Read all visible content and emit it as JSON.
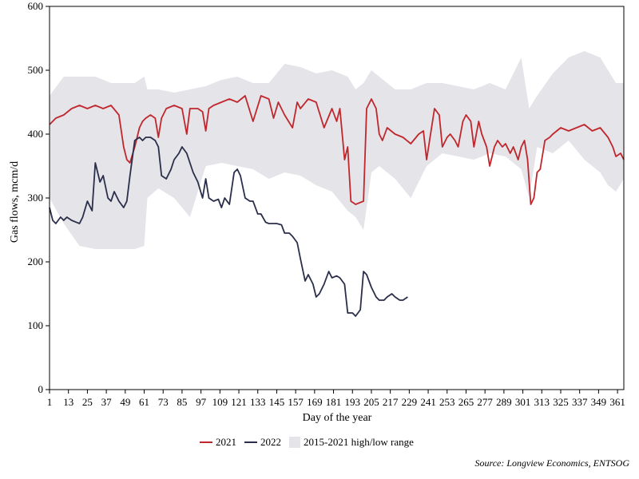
{
  "chart_data": {
    "type": "line",
    "title": "",
    "xlabel": "Day of the year",
    "ylabel": "Gas flows, mcm/d",
    "xlim": [
      1,
      365
    ],
    "ylim": [
      0,
      600
    ],
    "x_ticks": [
      1,
      13,
      25,
      37,
      49,
      61,
      73,
      85,
      97,
      109,
      121,
      133,
      145,
      157,
      169,
      181,
      193,
      205,
      217,
      229,
      241,
      253,
      265,
      277,
      289,
      301,
      313,
      325,
      337,
      349,
      361
    ],
    "y_ticks": [
      0,
      100,
      200,
      300,
      400,
      500,
      600
    ],
    "legend": {
      "placement": "bottom-center",
      "items": [
        "2021",
        "2022",
        "2015-2021 high/low range"
      ]
    },
    "colors": {
      "s2021": "#c0272d",
      "s2022": "#2b2e4a",
      "range": "#e4e4e9"
    },
    "range_band": {
      "name": "2015-2021 high/low range",
      "x": [
        1,
        10,
        20,
        30,
        40,
        55,
        61,
        63,
        70,
        80,
        90,
        100,
        110,
        120,
        130,
        140,
        150,
        160,
        170,
        180,
        190,
        195,
        200,
        205,
        210,
        220,
        230,
        240,
        250,
        260,
        270,
        280,
        290,
        300,
        305,
        310,
        320,
        330,
        340,
        350,
        355,
        360,
        365
      ],
      "high": [
        460,
        490,
        490,
        490,
        480,
        480,
        490,
        470,
        470,
        465,
        470,
        475,
        485,
        490,
        480,
        480,
        510,
        505,
        495,
        500,
        490,
        470,
        480,
        500,
        490,
        470,
        470,
        480,
        480,
        475,
        470,
        480,
        470,
        520,
        440,
        460,
        495,
        520,
        530,
        520,
        500,
        480,
        480
      ],
      "low": [
        300,
        260,
        225,
        220,
        220,
        220,
        225,
        300,
        315,
        300,
        270,
        350,
        355,
        350,
        345,
        330,
        340,
        335,
        320,
        310,
        280,
        270,
        250,
        340,
        350,
        330,
        300,
        350,
        370,
        365,
        360,
        370,
        365,
        345,
        300,
        380,
        370,
        390,
        360,
        340,
        320,
        310,
        330
      ]
    },
    "series": [
      {
        "name": "2021",
        "x": [
          1,
          5,
          10,
          15,
          20,
          25,
          30,
          35,
          40,
          45,
          48,
          50,
          52,
          55,
          58,
          60,
          62,
          65,
          68,
          70,
          72,
          75,
          80,
          85,
          88,
          90,
          95,
          98,
          100,
          102,
          105,
          110,
          115,
          120,
          125,
          130,
          135,
          140,
          143,
          146,
          150,
          155,
          158,
          160,
          165,
          170,
          175,
          180,
          183,
          185,
          188,
          190,
          192,
          195,
          200,
          202,
          205,
          208,
          210,
          212,
          215,
          220,
          225,
          230,
          235,
          238,
          240,
          245,
          248,
          250,
          253,
          255,
          258,
          260,
          263,
          265,
          268,
          270,
          273,
          275,
          278,
          280,
          283,
          285,
          288,
          290,
          293,
          295,
          298,
          300,
          302,
          304,
          306,
          308,
          310,
          312,
          315,
          318,
          320,
          325,
          330,
          335,
          340,
          345,
          350,
          355,
          358,
          360,
          363,
          365
        ],
        "values": [
          415,
          425,
          430,
          440,
          445,
          440,
          445,
          440,
          445,
          430,
          380,
          360,
          355,
          380,
          410,
          420,
          425,
          430,
          425,
          395,
          425,
          440,
          445,
          440,
          400,
          440,
          440,
          435,
          405,
          440,
          445,
          450,
          455,
          450,
          460,
          420,
          460,
          455,
          425,
          450,
          430,
          410,
          450,
          440,
          455,
          450,
          410,
          440,
          420,
          440,
          360,
          380,
          295,
          290,
          295,
          440,
          455,
          440,
          400,
          390,
          410,
          400,
          395,
          385,
          400,
          405,
          360,
          440,
          430,
          380,
          395,
          400,
          390,
          380,
          420,
          430,
          420,
          380,
          420,
          400,
          380,
          350,
          380,
          390,
          380,
          385,
          370,
          380,
          360,
          380,
          390,
          360,
          290,
          300,
          340,
          345,
          390,
          395,
          400,
          410,
          405,
          410,
          415,
          405,
          410,
          395,
          380,
          365,
          370,
          360
        ]
      },
      {
        "name": "2022",
        "x": [
          1,
          3,
          5,
          8,
          10,
          12,
          15,
          18,
          20,
          22,
          25,
          28,
          30,
          33,
          35,
          38,
          40,
          42,
          45,
          48,
          50,
          52,
          55,
          58,
          60,
          62,
          65,
          68,
          70,
          72,
          75,
          78,
          80,
          83,
          85,
          88,
          90,
          92,
          95,
          98,
          100,
          102,
          105,
          108,
          110,
          112,
          115,
          118,
          120,
          122,
          125,
          128,
          130,
          133,
          135,
          138,
          140,
          143,
          145,
          148,
          150,
          153,
          155,
          158,
          160,
          163,
          165,
          168,
          170,
          172,
          175,
          178,
          180,
          183,
          185,
          188,
          190,
          193,
          195,
          198,
          200,
          202,
          205,
          208,
          210,
          213,
          215,
          218,
          220,
          223,
          225,
          228
        ],
        "values": [
          285,
          265,
          260,
          270,
          265,
          270,
          265,
          262,
          260,
          270,
          295,
          280,
          355,
          325,
          335,
          300,
          295,
          310,
          295,
          285,
          295,
          335,
          390,
          395,
          390,
          395,
          395,
          390,
          380,
          335,
          330,
          345,
          360,
          370,
          380,
          370,
          355,
          340,
          325,
          300,
          330,
          300,
          295,
          298,
          285,
          300,
          290,
          340,
          345,
          335,
          300,
          295,
          295,
          275,
          275,
          262,
          260,
          260,
          260,
          258,
          245,
          245,
          240,
          230,
          205,
          170,
          180,
          165,
          145,
          150,
          165,
          185,
          175,
          178,
          175,
          165,
          120,
          120,
          115,
          125,
          185,
          180,
          160,
          145,
          140,
          140,
          145,
          150,
          145,
          140,
          140,
          145
        ]
      }
    ]
  },
  "source": "Source: Longview Economics, ENTSOG"
}
